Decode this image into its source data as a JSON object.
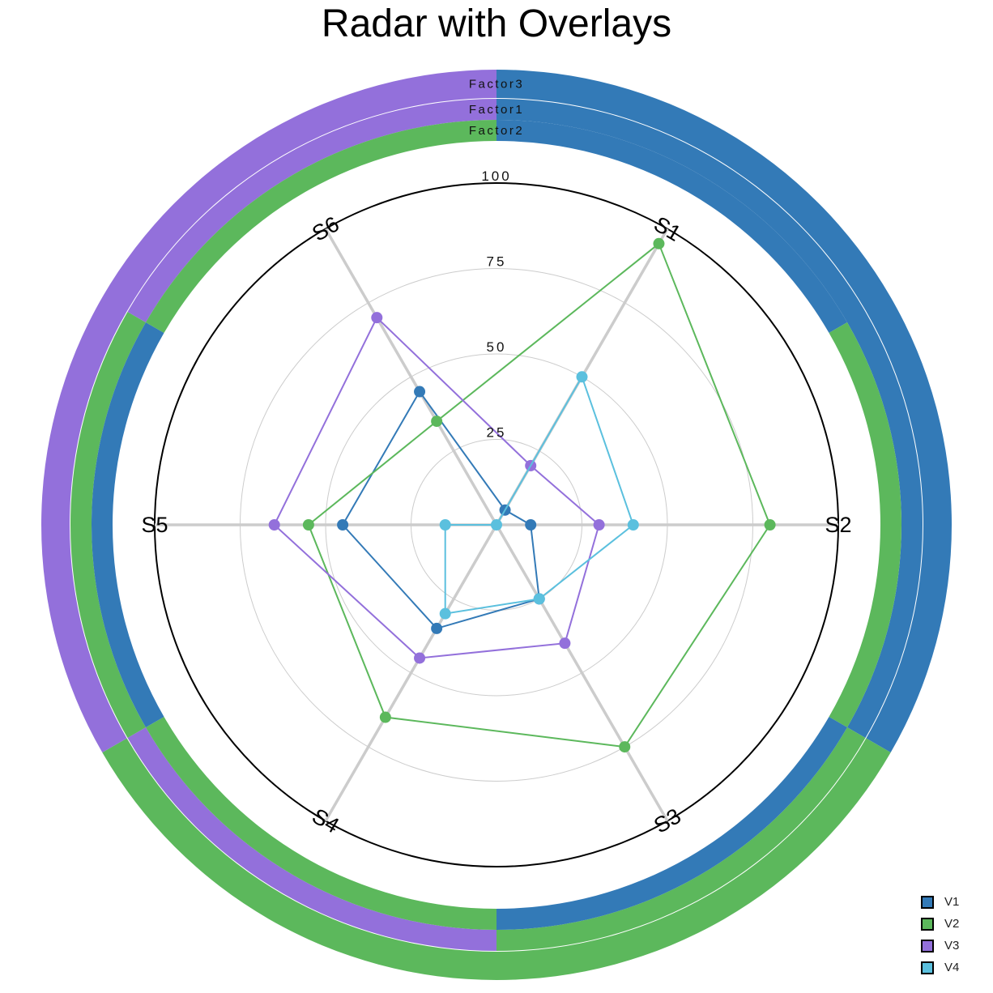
{
  "chart_data": {
    "type": "radar",
    "title": "Radar with Overlays",
    "axes": [
      "S1",
      "S2",
      "S3",
      "S4",
      "S5",
      "S6"
    ],
    "radial_range": [
      0,
      100
    ],
    "radial_ticks": [
      "25",
      "50",
      "75",
      "100"
    ],
    "series": [
      {
        "name": "V1",
        "color": "#337ab7",
        "values": [
          5,
          10,
          25,
          35,
          45,
          45
        ]
      },
      {
        "name": "V2",
        "color": "#5cb85c",
        "values": [
          95,
          80,
          75,
          65,
          55,
          35
        ]
      },
      {
        "name": "V3",
        "color": "#9370db",
        "values": [
          20,
          30,
          40,
          45,
          65,
          70
        ]
      },
      {
        "name": "V4",
        "color": "#5bc0de",
        "values": [
          50,
          40,
          25,
          30,
          15,
          0
        ]
      }
    ],
    "overlay_rings": [
      {
        "label": "Factor3",
        "segments": [
          {
            "series": "V1",
            "start_deg": 0,
            "end_deg": 120
          },
          {
            "series": "V2",
            "start_deg": 120,
            "end_deg": 240
          },
          {
            "series": "V3",
            "start_deg": 240,
            "end_deg": 360
          }
        ]
      },
      {
        "label": "Factor1",
        "segments": [
          {
            "series": "V1",
            "start_deg": 0,
            "end_deg": 120
          },
          {
            "series": "V2",
            "start_deg": 120,
            "end_deg": 180
          },
          {
            "series": "V3",
            "start_deg": 180,
            "end_deg": 240
          },
          {
            "series": "V2",
            "start_deg": 240,
            "end_deg": 300
          },
          {
            "series": "V3",
            "start_deg": 300,
            "end_deg": 360
          }
        ]
      },
      {
        "label": "Factor2",
        "segments": [
          {
            "series": "V1",
            "start_deg": 0,
            "end_deg": 60
          },
          {
            "series": "V2",
            "start_deg": 60,
            "end_deg": 120
          },
          {
            "series": "V1",
            "start_deg": 120,
            "end_deg": 180
          },
          {
            "series": "V2",
            "start_deg": 180,
            "end_deg": 240
          },
          {
            "series": "V1",
            "start_deg": 240,
            "end_deg": 300
          },
          {
            "series": "V2",
            "start_deg": 300,
            "end_deg": 360
          }
        ]
      }
    ],
    "legend": [
      "V1",
      "V2",
      "V3",
      "V4"
    ],
    "legend_position": "bottom-right",
    "grid": true
  }
}
